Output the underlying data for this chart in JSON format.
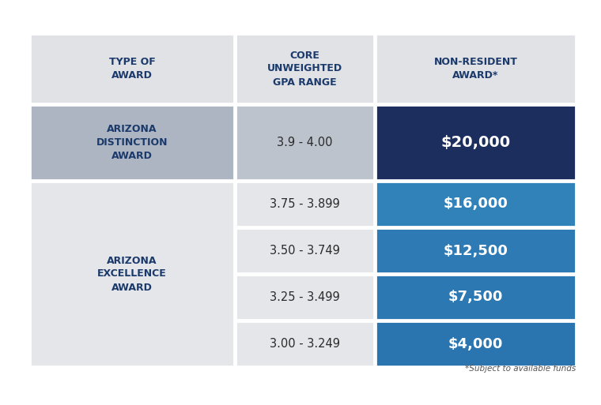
{
  "outer_bg": "#ffffff",
  "table_bg": "#e8eaed",
  "header_bg": "#e0e2e6",
  "header_text_color": "#1b3a6b",
  "header_fontsize": 9.0,
  "dist_col1_bg": "#adb5c2",
  "dist_col2_bg": "#bcc3cc",
  "dist_award_bg": "#1b2e5e",
  "excel_col1_bg": "#e4e6ea",
  "excel_col2_bg": "#e4e6ea",
  "excel_award_bgs": [
    "#3182b8",
    "#2e7ab5",
    "#2c78b2",
    "#2a75af"
  ],
  "award_text_color": "#ffffff",
  "type_text_color": "#1b3a6b",
  "gpa_text_color": "#2a2a2a",
  "header_col1": "TYPE OF\nAWARD",
  "header_col2": "CORE\nUNWEIGHTED\nGPA RANGE",
  "header_col3": "NON-RESIDENT\nAWARD*",
  "dist_type": "ARIZONA\nDISTINCTION\nAWARD",
  "dist_gpa": "3.9 - 4.00",
  "dist_award": "$20,000",
  "excel_type": "ARIZONA\nEXCELLENCE\nAWARD",
  "excel_gpas": [
    "3.75 - 3.899",
    "3.50 - 3.749",
    "3.25 - 3.499",
    "3.00 - 3.249"
  ],
  "excel_awards": [
    "$16,000",
    "$12,500",
    "$7,500",
    "$4,000"
  ],
  "footnote": "*Subject to available funds",
  "footnote_color": "#555555",
  "footnote_fontsize": 7.5,
  "fig_width": 7.6,
  "fig_height": 5.13,
  "dpi": 100
}
